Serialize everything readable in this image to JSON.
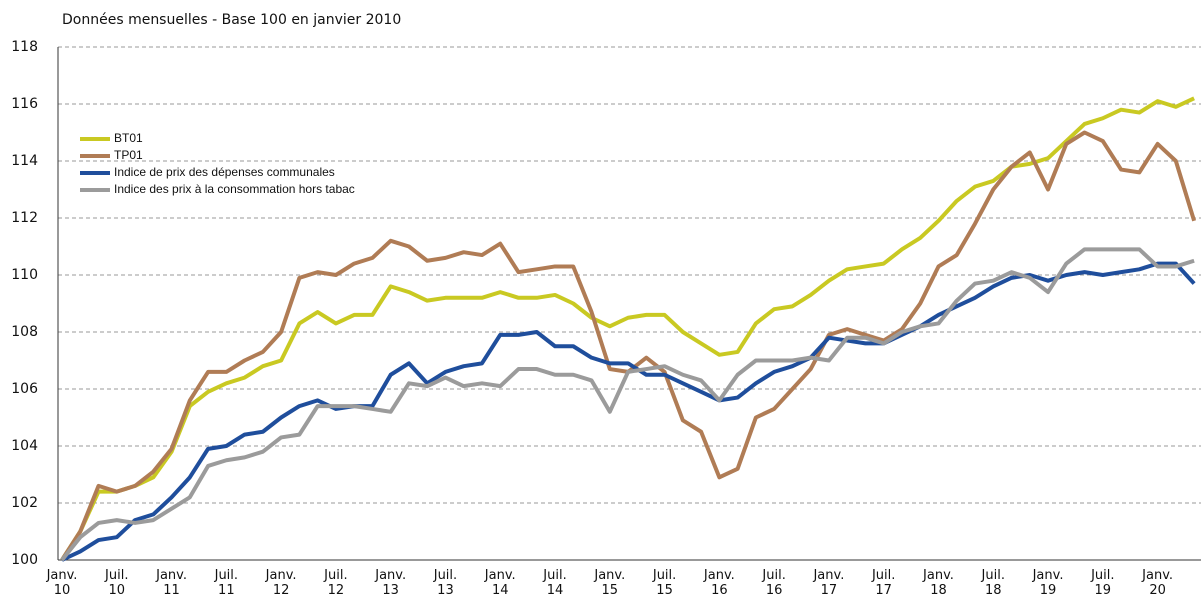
{
  "chart_data": {
    "type": "line",
    "title": "Données mensuelles - Base 100 en janvier 2010",
    "categories": [
      "Janv.\n10",
      null,
      null,
      "Juil.\n10",
      null,
      null,
      "Janv.\n11",
      null,
      null,
      "Juil.\n11",
      null,
      null,
      "Janv.\n12",
      null,
      null,
      "Juil.\n12",
      null,
      null,
      "Janv.\n13",
      null,
      null,
      "Juil.\n13",
      null,
      null,
      "Janv.\n14",
      null,
      null,
      "Juil.\n14",
      null,
      null,
      "Janv.\n15",
      null,
      null,
      "Juil.\n15",
      null,
      null,
      "Janv.\n16",
      null,
      null,
      "Juil.\n16",
      null,
      null,
      "Janv.\n17",
      null,
      null,
      "Juil.\n17",
      null,
      null,
      "Janv.\n18",
      null,
      null,
      "Juil.\n18",
      null,
      null,
      "Janv.\n19",
      null,
      null,
      "Juil.\n19",
      null,
      null,
      "Janv.\n20",
      null,
      null
    ],
    "series": [
      {
        "name": "BT01",
        "color": "#c9c922",
        "values": [
          100,
          101,
          102.4,
          102.4,
          102.6,
          102.9,
          103.8,
          105.4,
          105.9,
          106.2,
          106.4,
          106.8,
          107.0,
          108.3,
          108.7,
          108.3,
          108.6,
          108.6,
          109.6,
          109.4,
          109.1,
          109.2,
          109.2,
          109.2,
          109.4,
          109.2,
          109.2,
          109.3,
          109.0,
          108.5,
          108.2,
          108.5,
          108.6,
          108.6,
          108.0,
          107.6,
          107.2,
          107.3,
          108.3,
          108.8,
          108.9,
          109.3,
          109.8,
          110.2,
          110.3,
          110.4,
          110.9,
          111.3,
          111.9,
          112.6,
          113.1,
          113.3,
          113.8,
          113.9,
          114.1,
          114.7,
          115.3,
          115.5,
          115.8,
          115.7,
          116.1,
          115.9,
          116.2
        ]
      },
      {
        "name": "TP01",
        "color": "#b07c55",
        "values": [
          100,
          101,
          102.6,
          102.4,
          102.6,
          103.1,
          103.9,
          105.6,
          106.6,
          106.6,
          107.0,
          107.3,
          108.0,
          109.9,
          110.1,
          110.0,
          110.4,
          110.6,
          111.2,
          111.0,
          110.5,
          110.6,
          110.8,
          110.7,
          111.1,
          110.1,
          110.2,
          110.3,
          110.3,
          108.7,
          106.7,
          106.6,
          107.1,
          106.6,
          104.9,
          104.5,
          102.9,
          103.2,
          105.0,
          105.3,
          106.0,
          106.7,
          107.9,
          108.1,
          107.9,
          107.7,
          108.1,
          109.0,
          110.3,
          110.7,
          111.8,
          113.0,
          113.8,
          114.3,
          113.0,
          114.6,
          115.0,
          114.7,
          113.7,
          113.6,
          114.6,
          114.0,
          111.9
        ]
      },
      {
        "name": "Indice de prix des dépenses communales",
        "color": "#1f4e9c",
        "values": [
          100,
          100.3,
          100.7,
          100.8,
          101.4,
          101.6,
          102.2,
          102.9,
          103.9,
          104.0,
          104.4,
          104.5,
          105.0,
          105.4,
          105.6,
          105.3,
          105.4,
          105.4,
          106.5,
          106.9,
          106.2,
          106.6,
          106.8,
          106.9,
          107.9,
          107.9,
          108.0,
          107.5,
          107.5,
          107.1,
          106.9,
          106.9,
          106.5,
          106.5,
          106.2,
          105.9,
          105.6,
          105.7,
          106.2,
          106.6,
          106.8,
          107.1,
          107.8,
          107.7,
          107.6,
          107.6,
          107.9,
          108.2,
          108.6,
          108.9,
          109.2,
          109.6,
          109.9,
          110.0,
          109.8,
          110.0,
          110.1,
          110.0,
          110.1,
          110.2,
          110.4,
          110.4,
          109.7
        ]
      },
      {
        "name": "Indice des prix à la consommation hors tabac",
        "color": "#9b9b9b",
        "values": [
          100,
          100.8,
          101.3,
          101.4,
          101.3,
          101.4,
          101.8,
          102.2,
          103.3,
          103.5,
          103.6,
          103.8,
          104.3,
          104.4,
          105.4,
          105.4,
          105.4,
          105.3,
          105.2,
          106.2,
          106.1,
          106.4,
          106.1,
          106.2,
          106.1,
          106.7,
          106.7,
          106.5,
          106.5,
          106.3,
          105.2,
          106.6,
          106.7,
          106.8,
          106.5,
          106.3,
          105.6,
          106.5,
          107.0,
          107.0,
          107.0,
          107.1,
          107.0,
          107.8,
          107.8,
          107.6,
          108.0,
          108.2,
          108.3,
          109.1,
          109.7,
          109.8,
          110.1,
          109.9,
          109.4,
          110.4,
          110.9,
          110.9,
          110.9,
          110.9,
          110.3,
          110.3,
          110.5
        ]
      }
    ],
    "ylim": [
      100,
      118
    ],
    "yticks": [
      100,
      102,
      104,
      106,
      108,
      110,
      112,
      114,
      116,
      118
    ],
    "grid": true,
    "legend": "upper left"
  }
}
